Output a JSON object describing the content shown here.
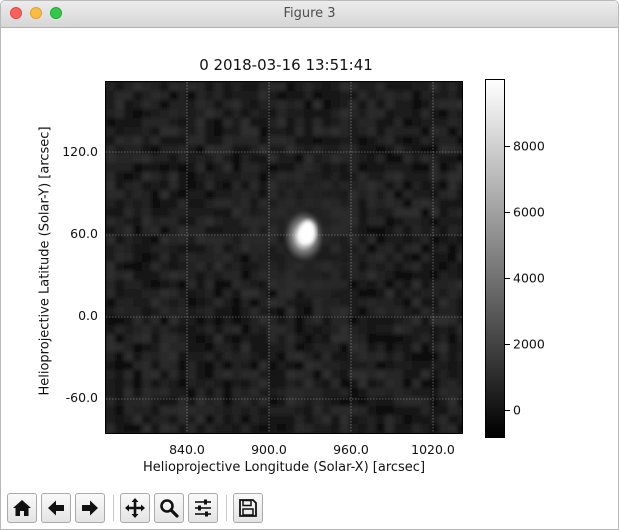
{
  "window": {
    "title": "Figure 3"
  },
  "plot": {
    "title": "0  2018-03-16 13:51:41",
    "xlabel": "Helioprojective Longitude (Solar-X) [arcsec]",
    "ylabel": "Helioprojective Latitude (Solar-Y) [arcsec]",
    "xticks": [
      "840.0",
      "900.0",
      "960.0",
      "1020.0"
    ],
    "yticks": [
      "120.0",
      "60.0",
      "0.0",
      "-60.0"
    ],
    "grid": true,
    "colormap": "gray",
    "source_peak": {
      "x": 927,
      "y": 62
    }
  },
  "colorbar": {
    "ticks": [
      "8000",
      "6000",
      "4000",
      "2000",
      "0"
    ],
    "range": [
      -800,
      9900
    ]
  },
  "toolbar": {
    "buttons": [
      "home-icon",
      "back-arrow-icon",
      "forward-arrow-icon",
      "pan-move-icon",
      "zoom-magnifier-icon",
      "subplots-sliders-icon",
      "save-floppy-icon"
    ]
  },
  "colors": {
    "close": "#fc605b",
    "minimize": "#fdbc40",
    "maximize": "#34c84a"
  }
}
